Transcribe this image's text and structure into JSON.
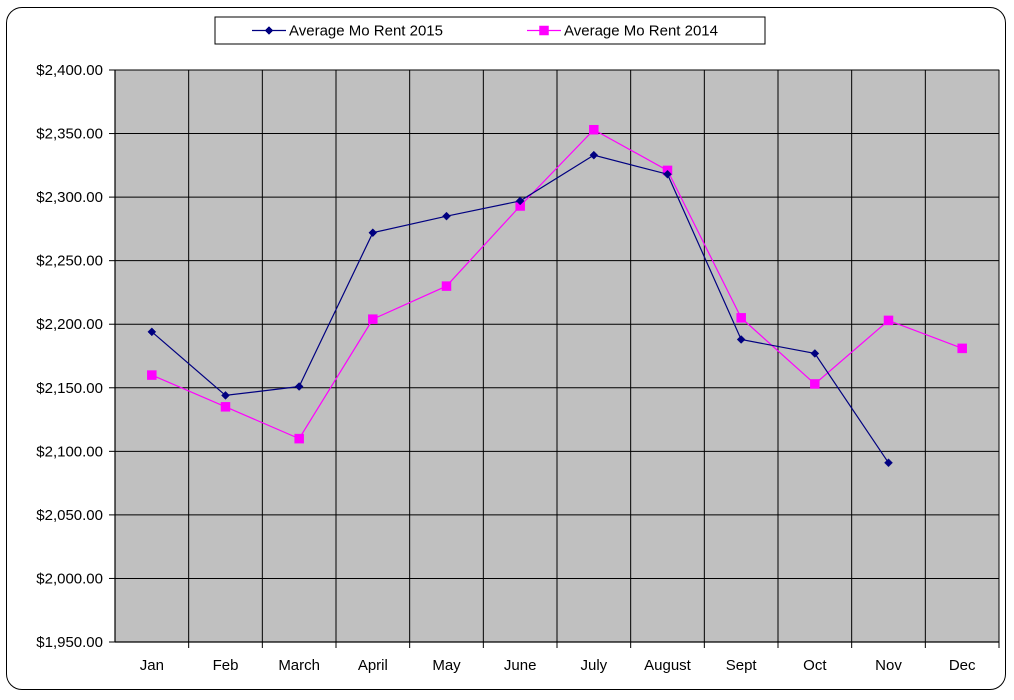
{
  "chart_data": {
    "type": "line",
    "title": "",
    "xlabel": "",
    "ylabel": "",
    "categories": [
      "Jan",
      "Feb",
      "March",
      "April",
      "May",
      "June",
      "July",
      "August",
      "Sept",
      "Oct",
      "Nov",
      "Dec"
    ],
    "ylim": [
      1950,
      2400
    ],
    "y_ticks": [
      1950,
      2000,
      2050,
      2100,
      2150,
      2200,
      2250,
      2300,
      2350,
      2400
    ],
    "y_tick_labels": [
      "$1,950.00",
      "$2,000.00",
      "$2,050.00",
      "$2,100.00",
      "$2,150.00",
      "$2,200.00",
      "$2,250.00",
      "$2,300.00",
      "$2,350.00",
      "$2,400.00"
    ],
    "grid": true,
    "legend_position": "top",
    "plot_background": "#c0c0c0",
    "series": [
      {
        "name": "Average Mo Rent 2015",
        "color": "#000080",
        "marker": "diamond",
        "values": [
          2194,
          2144,
          2151,
          2272,
          2285,
          2297,
          2333,
          2318,
          2188,
          2177,
          2091,
          null
        ]
      },
      {
        "name": "Average Mo Rent 2014",
        "color": "#ff00ff",
        "marker": "square",
        "values": [
          2160,
          2135,
          2110,
          2204,
          2230,
          2293,
          2353,
          2321,
          2205,
          2153,
          2203,
          2181
        ]
      }
    ]
  }
}
